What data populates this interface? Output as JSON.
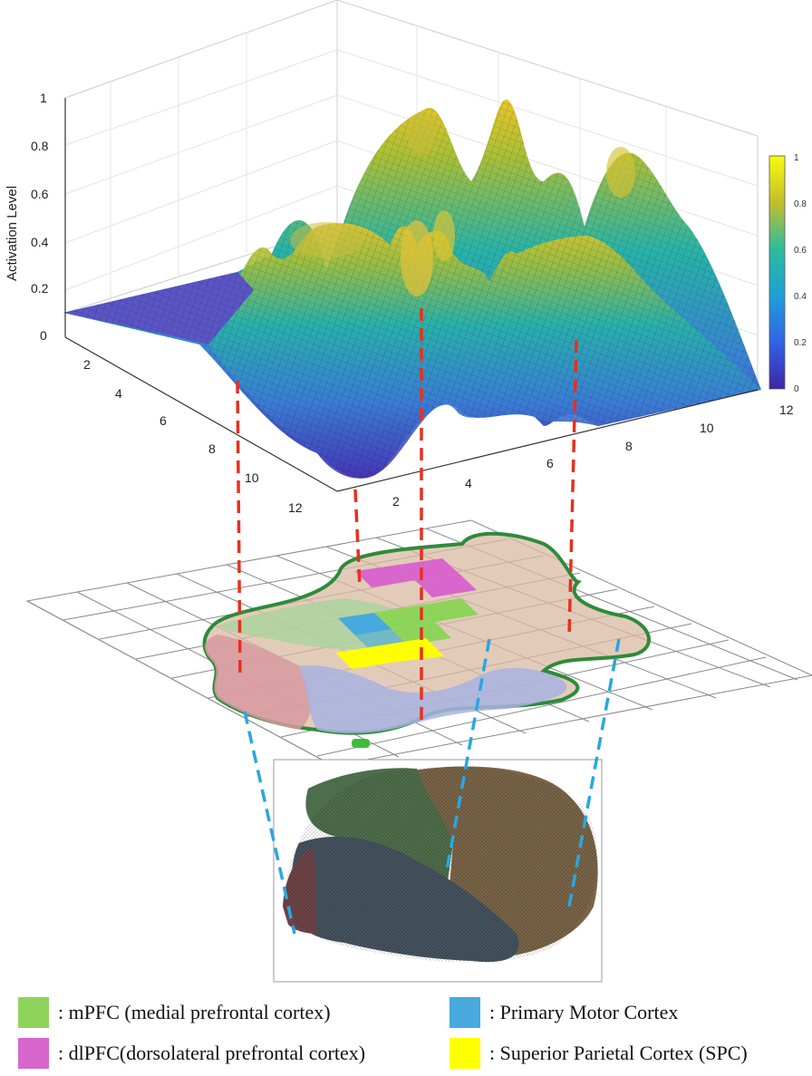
{
  "surface_plot": {
    "zlabel": "Activation Level",
    "z_ticks": [
      "0",
      "0.2",
      "0.4",
      "0.6",
      "0.8",
      "1"
    ],
    "y_ticks": [
      "2",
      "4",
      "6",
      "8",
      "10",
      "12"
    ],
    "x_ticks": [
      "2",
      "4",
      "6",
      "8",
      "10",
      "12"
    ],
    "colorbar_ticks": [
      "0",
      "0.2",
      "0.4",
      "0.6",
      "0.8",
      "1"
    ]
  },
  "legend": {
    "items": [
      {
        "swatch_color": "#8fd45a",
        "label": ": mPFC (medial prefrontal cortex)"
      },
      {
        "swatch_color": "#47a9dd",
        "label": ": Primary Motor Cortex"
      },
      {
        "swatch_color": "#d866cc",
        "label": ": dlPFC(dorsolateral prefrontal cortex)"
      },
      {
        "swatch_color": "#ffff00",
        "label": ": Superior Parietal Cortex (SPC)"
      }
    ]
  },
  "colors": {
    "red_connector": "#e8301e",
    "blue_connector": "#2aa7e0",
    "region_outline": "#2e8b3a"
  }
}
